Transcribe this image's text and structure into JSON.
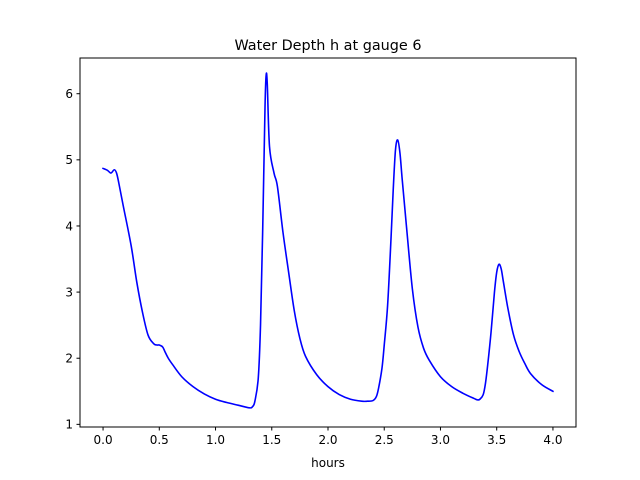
{
  "chart_data": {
    "type": "line",
    "title": "Water Depth h at gauge 6",
    "xlabel": "hours",
    "ylabel": "",
    "xlim": [
      -0.205,
      4.205
    ],
    "ylim": [
      0.96,
      6.54
    ],
    "xticks": [
      0.0,
      0.5,
      1.0,
      1.5,
      2.0,
      2.5,
      3.0,
      3.5,
      4.0
    ],
    "xtick_labels": [
      "0.0",
      "0.5",
      "1.0",
      "1.5",
      "2.0",
      "2.5",
      "3.0",
      "3.5",
      "4.0"
    ],
    "yticks": [
      1,
      2,
      3,
      4,
      5,
      6
    ],
    "ytick_labels": [
      "1",
      "2",
      "3",
      "4",
      "5",
      "6"
    ],
    "grid": false,
    "legend": "none",
    "series": [
      {
        "color": "#0000ff",
        "x": [
          0.0,
          0.04,
          0.07,
          0.1,
          0.12,
          0.14,
          0.18,
          0.25,
          0.3,
          0.35,
          0.4,
          0.45,
          0.48,
          0.5,
          0.53,
          0.55,
          0.58,
          0.62,
          0.7,
          0.8,
          0.9,
          1.0,
          1.1,
          1.2,
          1.3,
          1.33,
          1.35,
          1.38,
          1.4,
          1.42,
          1.44,
          1.45,
          1.46,
          1.48,
          1.52,
          1.55,
          1.6,
          1.65,
          1.7,
          1.75,
          1.8,
          1.9,
          2.0,
          2.1,
          2.2,
          2.3,
          2.35,
          2.4,
          2.43,
          2.45,
          2.48,
          2.5,
          2.53,
          2.56,
          2.58,
          2.6,
          2.62,
          2.64,
          2.66,
          2.7,
          2.75,
          2.8,
          2.85,
          2.9,
          3.0,
          3.1,
          3.2,
          3.3,
          3.33,
          3.35,
          3.38,
          3.4,
          3.42,
          3.45,
          3.48,
          3.5,
          3.52,
          3.54,
          3.56,
          3.6,
          3.65,
          3.7,
          3.75,
          3.8,
          3.9,
          4.0
        ],
        "y": [
          4.87,
          4.84,
          4.8,
          4.85,
          4.8,
          4.65,
          4.3,
          3.7,
          3.15,
          2.7,
          2.35,
          2.22,
          2.2,
          2.2,
          2.17,
          2.1,
          2.0,
          1.9,
          1.72,
          1.57,
          1.46,
          1.38,
          1.33,
          1.29,
          1.25,
          1.27,
          1.35,
          1.7,
          2.5,
          4.0,
          5.8,
          6.28,
          6.15,
          5.2,
          4.8,
          4.6,
          3.9,
          3.3,
          2.72,
          2.3,
          2.03,
          1.75,
          1.57,
          1.45,
          1.38,
          1.35,
          1.35,
          1.36,
          1.42,
          1.55,
          1.85,
          2.2,
          2.8,
          3.8,
          4.55,
          5.15,
          5.3,
          5.1,
          4.7,
          3.95,
          3.05,
          2.47,
          2.15,
          1.97,
          1.72,
          1.57,
          1.47,
          1.39,
          1.37,
          1.38,
          1.45,
          1.62,
          1.9,
          2.4,
          3.0,
          3.3,
          3.42,
          3.35,
          3.15,
          2.75,
          2.35,
          2.1,
          1.92,
          1.77,
          1.6,
          1.5
        ]
      }
    ]
  }
}
